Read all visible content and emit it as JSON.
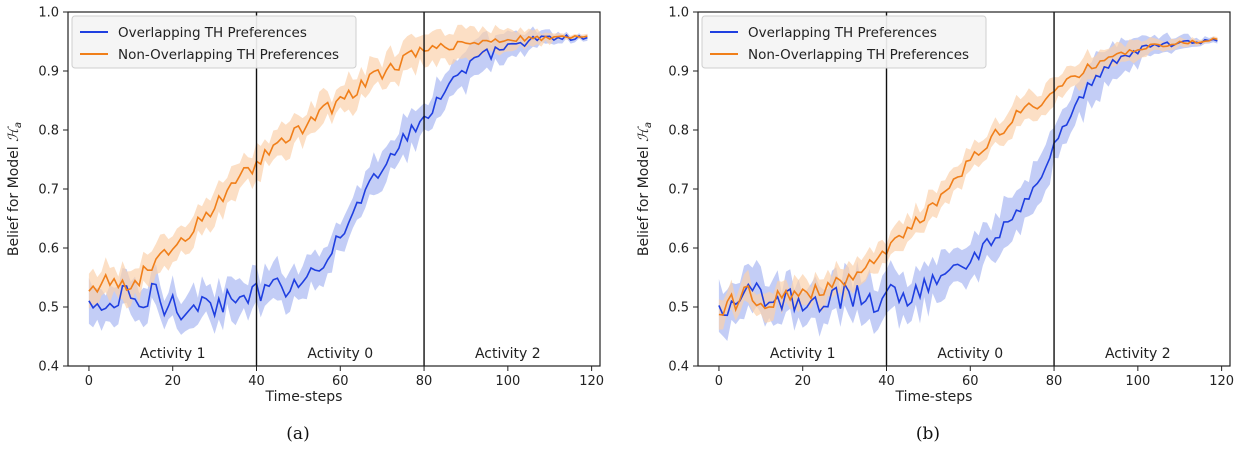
{
  "chart_data": [
    {
      "type": "line",
      "caption": "(a)",
      "xlabel": "Time-steps",
      "ylabel_prefix": "Belief for Model ",
      "ylabel_symbol": "ℋ",
      "ylabel_sub": "a",
      "xlim": [
        -5,
        122
      ],
      "ylim": [
        0.4,
        1.0
      ],
      "xticks": [
        0,
        20,
        40,
        60,
        80,
        100,
        120
      ],
      "yticks": [
        0.4,
        0.5,
        0.6,
        0.7,
        0.8,
        0.9,
        1.0
      ],
      "vlines": [
        40,
        80
      ],
      "regions": [
        {
          "label": "Activity 1",
          "x": 20
        },
        {
          "label": "Activity 0",
          "x": 60
        },
        {
          "label": "Activity 2",
          "x": 100
        }
      ],
      "legend_position": "top-left",
      "series": [
        {
          "name": "Overlapping TH Preferences",
          "color": "#1f3fe0",
          "band_color": "#a9b8f2",
          "knots": [
            [
              0,
              0.505
            ],
            [
              2,
              0.49
            ],
            [
              4,
              0.51
            ],
            [
              6,
              0.5
            ],
            [
              8,
              0.52
            ],
            [
              10,
              0.51
            ],
            [
              12,
              0.505
            ],
            [
              14,
              0.51
            ],
            [
              16,
              0.53
            ],
            [
              18,
              0.5
            ],
            [
              20,
              0.51
            ],
            [
              22,
              0.5
            ],
            [
              24,
              0.51
            ],
            [
              26,
              0.5
            ],
            [
              28,
              0.51
            ],
            [
              30,
              0.5
            ],
            [
              32,
              0.51
            ],
            [
              34,
              0.505
            ],
            [
              36,
              0.51
            ],
            [
              38,
              0.52
            ],
            [
              40,
              0.52
            ],
            [
              44,
              0.53
            ],
            [
              48,
              0.54
            ],
            [
              52,
              0.55
            ],
            [
              56,
              0.58
            ],
            [
              60,
              0.62
            ],
            [
              64,
              0.67
            ],
            [
              68,
              0.72
            ],
            [
              72,
              0.76
            ],
            [
              76,
              0.79
            ],
            [
              80,
              0.82
            ],
            [
              84,
              0.86
            ],
            [
              88,
              0.89
            ],
            [
              92,
              0.915
            ],
            [
              96,
              0.93
            ],
            [
              100,
              0.94
            ],
            [
              104,
              0.95
            ],
            [
              110,
              0.955
            ],
            [
              119,
              0.957
            ]
          ],
          "noise": [
            0.022,
            0.022,
            0.022,
            0.022,
            0.022,
            0.015,
            0.015,
            0.012,
            0.012,
            0.012,
            0.008,
            0.006,
            0.004,
            0.003
          ],
          "band": 0.03
        },
        {
          "name": "Non-Overlapping TH Preferences",
          "color": "#f07f1a",
          "band_color": "#fbd1ad",
          "knots": [
            [
              0,
              0.52
            ],
            [
              4,
              0.53
            ],
            [
              8,
              0.54
            ],
            [
              12,
              0.55
            ],
            [
              16,
              0.58
            ],
            [
              20,
              0.6
            ],
            [
              24,
              0.62
            ],
            [
              28,
              0.66
            ],
            [
              32,
              0.69
            ],
            [
              36,
              0.72
            ],
            [
              40,
              0.745
            ],
            [
              44,
              0.77
            ],
            [
              48,
              0.79
            ],
            [
              52,
              0.81
            ],
            [
              56,
              0.83
            ],
            [
              60,
              0.85
            ],
            [
              64,
              0.87
            ],
            [
              68,
              0.89
            ],
            [
              72,
              0.905
            ],
            [
              76,
              0.92
            ],
            [
              80,
              0.935
            ],
            [
              84,
              0.94
            ],
            [
              88,
              0.945
            ],
            [
              92,
              0.95
            ],
            [
              96,
              0.95
            ],
            [
              100,
              0.955
            ],
            [
              104,
              0.955
            ],
            [
              110,
              0.957
            ],
            [
              119,
              0.957
            ]
          ],
          "noise": [
            0.025,
            0.015,
            0.015,
            0.015,
            0.012,
            0.012,
            0.012,
            0.012,
            0.008,
            0.006,
            0.005,
            0.003,
            0.002,
            0.002
          ],
          "band": 0.025
        }
      ]
    },
    {
      "type": "line",
      "caption": "(b)",
      "xlabel": "Time-steps",
      "ylabel_prefix": "Belief for Model ",
      "ylabel_symbol": "ℋ",
      "ylabel_sub": "a",
      "xlim": [
        -5,
        122
      ],
      "ylim": [
        0.4,
        1.0
      ],
      "xticks": [
        0,
        20,
        40,
        60,
        80,
        100,
        120
      ],
      "yticks": [
        0.4,
        0.5,
        0.6,
        0.7,
        0.8,
        0.9,
        1.0
      ],
      "vlines": [
        40,
        80
      ],
      "regions": [
        {
          "label": "Activity 1",
          "x": 20
        },
        {
          "label": "Activity 0",
          "x": 60
        },
        {
          "label": "Activity 2",
          "x": 100
        }
      ],
      "legend_position": "top-left",
      "series": [
        {
          "name": "Overlapping TH Preferences",
          "color": "#1f3fe0",
          "band_color": "#a9b8f2",
          "knots": [
            [
              0,
              0.495
            ],
            [
              4,
              0.51
            ],
            [
              8,
              0.52
            ],
            [
              12,
              0.51
            ],
            [
              16,
              0.51
            ],
            [
              20,
              0.51
            ],
            [
              24,
              0.51
            ],
            [
              28,
              0.515
            ],
            [
              32,
              0.52
            ],
            [
              36,
              0.51
            ],
            [
              40,
              0.52
            ],
            [
              44,
              0.52
            ],
            [
              48,
              0.53
            ],
            [
              52,
              0.545
            ],
            [
              56,
              0.56
            ],
            [
              60,
              0.58
            ],
            [
              64,
              0.605
            ],
            [
              68,
              0.635
            ],
            [
              72,
              0.67
            ],
            [
              76,
              0.715
            ],
            [
              80,
              0.77
            ],
            [
              84,
              0.83
            ],
            [
              88,
              0.875
            ],
            [
              92,
              0.9
            ],
            [
              96,
              0.925
            ],
            [
              100,
              0.935
            ],
            [
              104,
              0.943
            ],
            [
              110,
              0.947
            ],
            [
              119,
              0.953
            ]
          ],
          "noise": [
            0.025,
            0.022,
            0.022,
            0.022,
            0.022,
            0.015,
            0.012,
            0.012,
            0.01,
            0.008,
            0.006,
            0.004,
            0.003,
            0.002
          ],
          "band": 0.035
        },
        {
          "name": "Non-Overlapping TH Preferences",
          "color": "#f07f1a",
          "band_color": "#fbd1ad",
          "knots": [
            [
              0,
              0.48
            ],
            [
              4,
              0.51
            ],
            [
              8,
              0.515
            ],
            [
              12,
              0.515
            ],
            [
              16,
              0.52
            ],
            [
              20,
              0.52
            ],
            [
              24,
              0.525
            ],
            [
              28,
              0.54
            ],
            [
              32,
              0.555
            ],
            [
              36,
              0.575
            ],
            [
              40,
              0.595
            ],
            [
              44,
              0.62
            ],
            [
              48,
              0.65
            ],
            [
              52,
              0.68
            ],
            [
              56,
              0.71
            ],
            [
              60,
              0.745
            ],
            [
              64,
              0.775
            ],
            [
              68,
              0.805
            ],
            [
              72,
              0.83
            ],
            [
              76,
              0.845
            ],
            [
              80,
              0.862
            ],
            [
              84,
              0.885
            ],
            [
              88,
              0.905
            ],
            [
              92,
              0.918
            ],
            [
              96,
              0.928
            ],
            [
              100,
              0.936
            ],
            [
              104,
              0.943
            ],
            [
              110,
              0.948
            ],
            [
              119,
              0.953
            ]
          ],
          "noise": [
            0.022,
            0.018,
            0.015,
            0.012,
            0.012,
            0.012,
            0.012,
            0.01,
            0.008,
            0.006,
            0.005,
            0.003,
            0.002,
            0.002
          ],
          "band": 0.022
        }
      ]
    }
  ]
}
